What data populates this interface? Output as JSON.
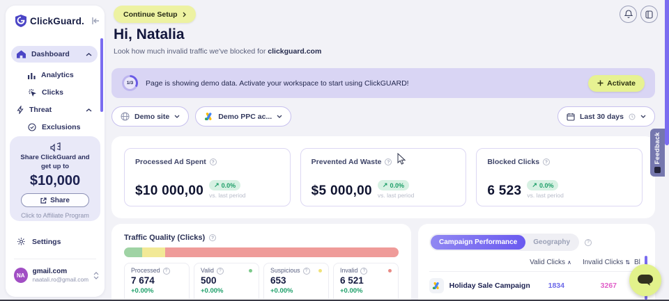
{
  "colors": {
    "accent_purple": "#6a5be6",
    "lime": "#e7f292",
    "green_badge": "#1d9e68",
    "valid_blue": "#6b68e8",
    "invalid_pink": "#e05ec8"
  },
  "app": {
    "brand": "ClickGuard."
  },
  "sidebar": {
    "nav": [
      {
        "label": "Dashboard"
      },
      {
        "label": "Analytics"
      },
      {
        "label": "Clicks"
      },
      {
        "label": "Threat"
      },
      {
        "label": "Exclusions"
      }
    ],
    "promo": {
      "line1": "Share ClickGuard and",
      "line2": "get up to",
      "amount": "$10,000",
      "share_label": "Share",
      "caption": "Click to Affiliate Program"
    },
    "settings_label": "Settings",
    "user": {
      "initials": "NA",
      "name": "gmail.com",
      "email": "naatali.ro@gmail.com"
    }
  },
  "header": {
    "continue_setup": "Continue Setup",
    "greeting": "Hi, Natalia",
    "subtitle_prefix": "Look how much invalid traffic we've blocked for ",
    "subtitle_domain": "clickguard.com"
  },
  "banner": {
    "step": "1/3",
    "message": "Page is showing demo data. Activate your workspace to start using ClickGUARD!",
    "activate_label": "Activate"
  },
  "filters": {
    "site": "Demo site",
    "account": "Demo PPC ac...",
    "date": "Last 30 days"
  },
  "stats": [
    {
      "title": "Processed Ad Spent",
      "value": "$10 000,00",
      "change": "0.0%",
      "compare": "vs. last period"
    },
    {
      "title": "Prevented Ad Waste",
      "value": "$5 000,00",
      "change": "0.0%",
      "compare": "vs. last period"
    },
    {
      "title": "Blocked Clicks",
      "value": "6 523",
      "change": "0.0%",
      "compare": "vs. last period"
    }
  ],
  "traffic": {
    "title": "Traffic Quality (Clicks)",
    "segments": [
      {
        "name": "valid",
        "pct": 6.5,
        "color": "#9fd3a4"
      },
      {
        "name": "suspicious",
        "pct": 8.5,
        "color": "#f2e996"
      },
      {
        "name": "invalid",
        "pct": 85,
        "color": "#ef9b99"
      }
    ],
    "cards": [
      {
        "label": "Processed",
        "value": "7 674",
        "change": "+0.00%",
        "dot": ""
      },
      {
        "label": "Valid",
        "value": "500",
        "change": "+0.00%",
        "dot": "#7cc98a"
      },
      {
        "label": "Suspicious",
        "value": "653",
        "change": "+0.00%",
        "dot": "#f0e27a"
      },
      {
        "label": "Invalid",
        "value": "6 521",
        "change": "+0.00%",
        "dot": "#e88a85"
      }
    ]
  },
  "campaigns": {
    "tabs": [
      {
        "label": "Campaign Performance"
      },
      {
        "label": "Geography"
      }
    ],
    "columns": {
      "valid": "Valid Clicks",
      "invalid": "Invalid Clicks",
      "blocked": "Bl"
    },
    "rows": [
      {
        "name": "Holiday Sale Campaign",
        "valid": "1834",
        "invalid": "3267"
      }
    ]
  },
  "feedback_label": "Feedback"
}
